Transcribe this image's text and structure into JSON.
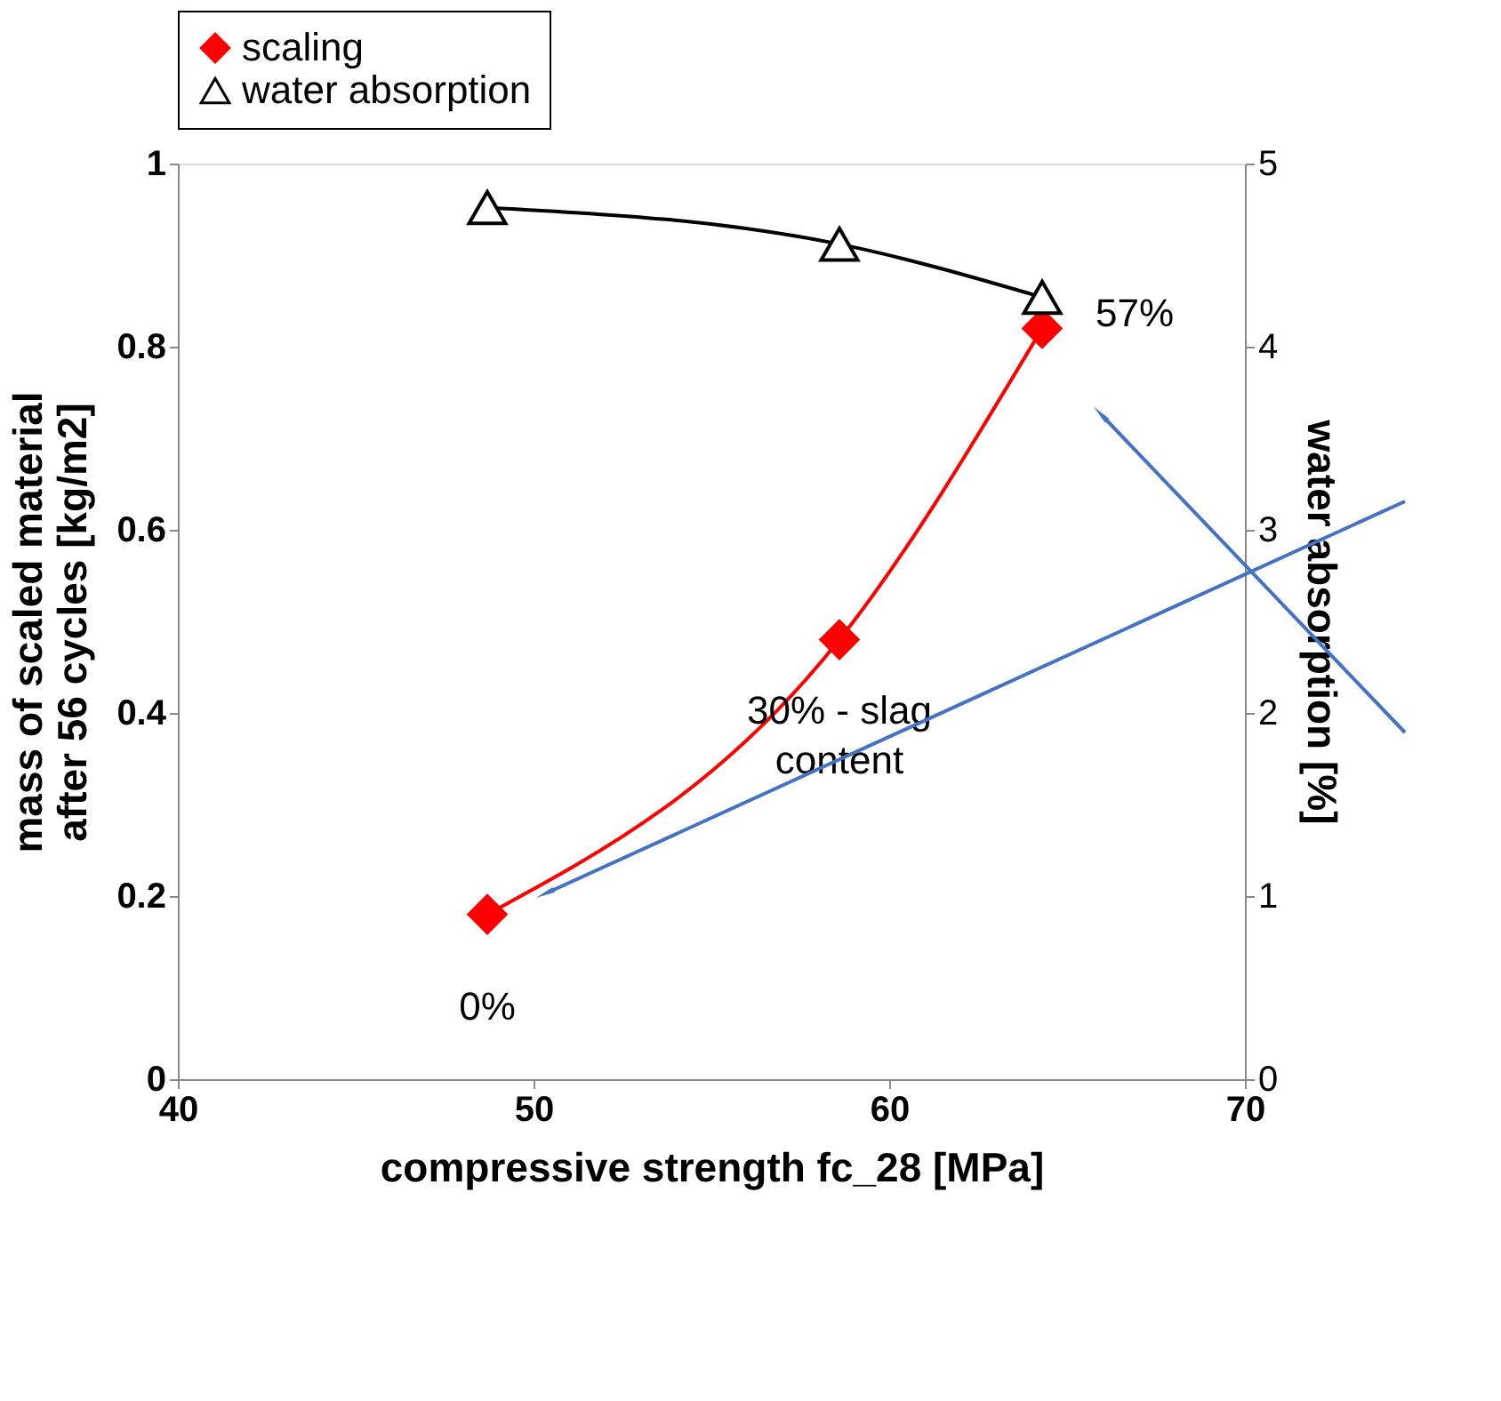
{
  "chart_data": {
    "type": "line",
    "xlabel": "compressive strength fc_28 [MPa]",
    "ylabel": "mass of scaled material after 56 cycles [kg/m2]",
    "y2label": "water absorption [%]",
    "xlim": [
      40,
      70
    ],
    "xticks": [
      40,
      50,
      60,
      70
    ],
    "ylim": [
      0,
      1
    ],
    "yticks": [
      0,
      0.2,
      0.4,
      0.6,
      0.8,
      1
    ],
    "y2lim": [
      0,
      5
    ],
    "y2ticks": [
      0,
      1,
      2,
      3,
      4,
      5
    ],
    "x": [
      48.7,
      58.6,
      64.3
    ],
    "legend": "top",
    "grid": false,
    "series": [
      {
        "name": "scaling",
        "color": "#ff0000",
        "marker": "diamond",
        "values": [
          0.18,
          0.48,
          0.82
        ]
      },
      {
        "name": "water absorption",
        "color": "#000000",
        "marker": "triangle",
        "axis": "y2",
        "values": [
          4.76,
          4.56,
          4.27
        ]
      }
    ],
    "annotations": [
      {
        "text": "57%",
        "x": 64.3,
        "y": 0.82
      },
      {
        "text": "30% - slag content",
        "x": 58.6,
        "y": 0.48
      },
      {
        "text": "0%",
        "x": 48.7,
        "y": 0.18
      }
    ]
  }
}
